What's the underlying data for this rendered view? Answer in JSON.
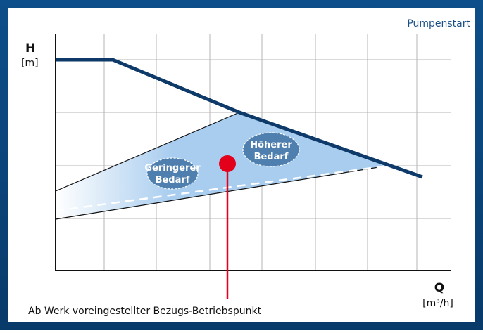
{
  "header": {
    "title": "Pumpenstart"
  },
  "axes": {
    "y_label": "H",
    "y_unit": "[m]",
    "x_label": "Q",
    "x_unit": "[m³/h]"
  },
  "regions": [
    {
      "lines": [
        "Geringerer",
        "Bedarf"
      ]
    },
    {
      "lines": [
        "Höherer",
        "Bedarf"
      ]
    }
  ],
  "annotation": "Ab Werk voreingestellter Bezugs-Betriebspunkt"
}
